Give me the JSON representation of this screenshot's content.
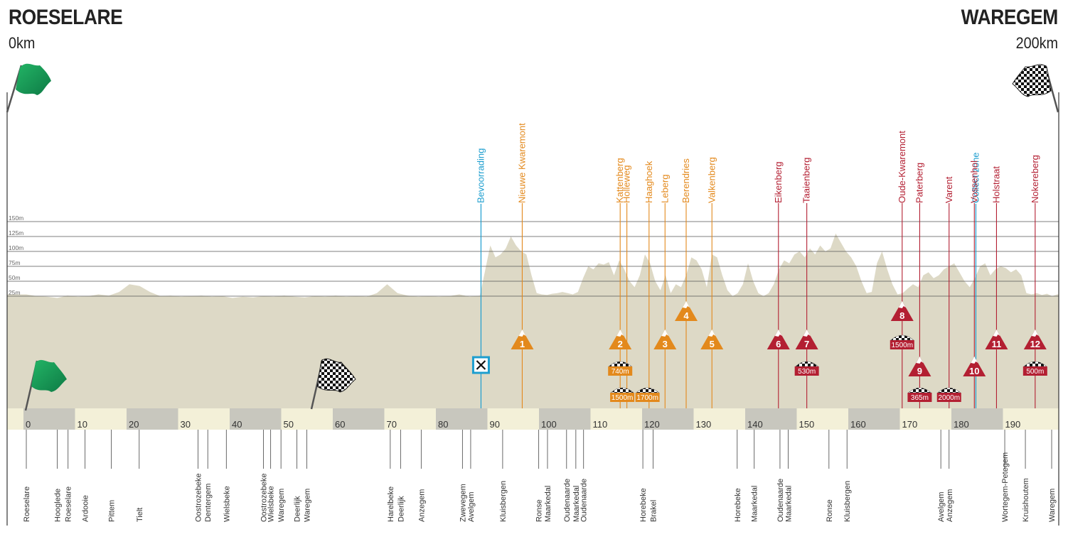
{
  "header": {
    "start_city": "ROESELARE",
    "start_distance": "0km",
    "finish_city": "WAREGEM",
    "finish_distance": "200km"
  },
  "colors": {
    "terrain": "#ddd9c6",
    "band_dark": "#c8c7be",
    "band_light": "#f3f0d8",
    "climb_orange": "#e3891c",
    "climb_red": "#b31f32",
    "feed": "#1d9ecf",
    "flag_green": "#2ba55b"
  },
  "chart_data": {
    "type": "area",
    "title": "",
    "xlabel": "",
    "ylabel": "",
    "xlim": [
      0,
      200
    ],
    "ylim": [
      0,
      150
    ],
    "grid": true,
    "y_ticks": [
      "150m",
      "125m",
      "100m",
      "75m",
      "50m",
      "25m"
    ],
    "x_ticks": [
      "0",
      "10",
      "20",
      "30",
      "40",
      "50",
      "60",
      "70",
      "80",
      "90",
      "100",
      "110",
      "120",
      "130",
      "140",
      "150",
      "160",
      "170",
      "180",
      "190"
    ],
    "elevation": {
      "km": [
        0,
        2,
        4,
        6,
        8,
        10,
        12,
        14,
        16,
        18,
        20,
        22,
        24,
        26,
        28,
        30,
        32,
        34,
        36,
        38,
        40,
        42,
        44,
        46,
        48,
        50,
        52,
        54,
        56,
        58,
        60,
        62,
        64,
        66,
        68,
        70,
        72,
        74,
        76,
        78,
        80,
        82,
        84,
        86,
        88,
        90,
        91,
        92,
        93,
        94,
        95,
        96,
        97,
        98,
        99,
        100,
        101,
        102,
        103,
        104,
        105,
        106,
        107,
        108,
        109,
        110,
        111,
        112,
        113,
        114,
        115,
        116,
        117,
        118,
        119,
        120,
        121,
        122,
        123,
        124,
        125,
        126,
        127,
        128,
        129,
        130,
        131,
        132,
        133,
        134,
        135,
        136,
        137,
        138,
        139,
        140,
        141,
        142,
        143,
        144,
        145,
        146,
        147,
        148,
        149,
        150,
        151,
        152,
        153,
        154,
        155,
        156,
        157,
        158,
        159,
        160,
        161,
        162,
        163,
        164,
        165,
        166,
        167,
        168,
        169,
        170,
        171,
        172,
        173,
        174,
        175,
        176,
        177,
        178,
        179,
        180,
        181,
        182,
        183,
        184,
        185,
        186,
        187,
        188,
        189,
        190,
        191,
        192,
        193,
        194,
        195,
        196,
        197,
        198,
        199,
        200
      ],
      "m": [
        28,
        25,
        24,
        22,
        26,
        24,
        25,
        28,
        26,
        32,
        45,
        42,
        32,
        25,
        26,
        24,
        25,
        26,
        24,
        25,
        22,
        24,
        23,
        25,
        24,
        26,
        24,
        23,
        25,
        24,
        26,
        24,
        25,
        24,
        30,
        45,
        30,
        26,
        24,
        25,
        24,
        25,
        28,
        24,
        26,
        110,
        90,
        95,
        105,
        125,
        110,
        100,
        95,
        60,
        30,
        28,
        27,
        29,
        30,
        32,
        30,
        28,
        32,
        55,
        75,
        70,
        80,
        78,
        82,
        60,
        85,
        70,
        50,
        40,
        60,
        95,
        80,
        50,
        35,
        60,
        30,
        45,
        40,
        60,
        90,
        85,
        70,
        40,
        95,
        90,
        60,
        35,
        25,
        30,
        45,
        80,
        50,
        30,
        25,
        30,
        45,
        70,
        85,
        80,
        95,
        100,
        90,
        105,
        95,
        110,
        100,
        105,
        130,
        115,
        100,
        90,
        75,
        50,
        30,
        32,
        80,
        100,
        70,
        45,
        28,
        30,
        38,
        45,
        40,
        60,
        65,
        55,
        60,
        70,
        75,
        80,
        65,
        50,
        40,
        55,
        75,
        80,
        60,
        70,
        75,
        72,
        65,
        70,
        60,
        30,
        28,
        30,
        27,
        29,
        25,
        28
      ]
    },
    "feed_zones": [
      {
        "km": 88.2,
        "label": "Bevoorrading"
      },
      {
        "km": 184.2,
        "label": "Collect zone"
      }
    ],
    "climbs": [
      {
        "num": "1",
        "name": "Nieuwe Kwaremont",
        "km": 96.2,
        "color": "orange",
        "row": 1
      },
      {
        "num": "2",
        "name": "Kattenberg",
        "km": 115.2,
        "color": "orange",
        "row": 1
      },
      {
        "num": "",
        "name": "Holleweg",
        "km": 116.5,
        "color": "orange",
        "row": 0
      },
      {
        "num": "",
        "name": "Haaghoek",
        "km": 120.8,
        "color": "orange",
        "row": 0
      },
      {
        "num": "3",
        "name": "Leberg",
        "km": 123.9,
        "color": "orange",
        "row": 1
      },
      {
        "num": "4",
        "name": "Berendries",
        "km": 128.0,
        "color": "orange",
        "row": 0
      },
      {
        "num": "5",
        "name": "Valkenberg",
        "km": 133.0,
        "color": "orange",
        "row": 1
      },
      {
        "num": "6",
        "name": "Eikenberg",
        "km": 145.9,
        "color": "red",
        "row": 1
      },
      {
        "num": "7",
        "name": "Taaienberg",
        "km": 151.4,
        "color": "red",
        "row": 1
      },
      {
        "num": "8",
        "name": "Oude-Kwaremont",
        "km": 169.9,
        "color": "red",
        "row": 0
      },
      {
        "num": "9",
        "name": "Paterberg",
        "km": 173.3,
        "color": "red",
        "row": 2
      },
      {
        "num": "",
        "name": "Varent",
        "km": 179.0,
        "color": "red",
        "row": 0
      },
      {
        "num": "10",
        "name": "Vossenhol",
        "km": 183.9,
        "color": "red",
        "row": 2
      },
      {
        "num": "11",
        "name": "Holstraat",
        "km": 188.2,
        "color": "red",
        "row": 1
      },
      {
        "num": "12",
        "name": "Nokereberg",
        "km": 195.7,
        "color": "red",
        "row": 1
      }
    ],
    "cobbles": [
      {
        "km": 115.2,
        "label": "740m",
        "color": "orange",
        "row": 2
      },
      {
        "km": 115.6,
        "label": "1500m",
        "color": "orange",
        "row": 3
      },
      {
        "km": 120.5,
        "label": "1700m",
        "color": "orange",
        "row": 3
      },
      {
        "km": 151.4,
        "label": "530m",
        "color": "red",
        "row": 2
      },
      {
        "km": 169.9,
        "label": "1500m",
        "color": "red",
        "row": 1
      },
      {
        "km": 173.3,
        "label": "365m",
        "color": "red",
        "row": 3
      },
      {
        "km": 179.0,
        "label": "2000m",
        "color": "red",
        "row": 3
      },
      {
        "km": 195.7,
        "label": "500m",
        "color": "red",
        "row": 2
      }
    ],
    "places": [
      {
        "name": "Roeselare",
        "km": 0
      },
      {
        "name": "Hooglede",
        "km": 6.0
      },
      {
        "name": "Roeselare",
        "km": 8.1
      },
      {
        "name": "Ardooie",
        "km": 11.4
      },
      {
        "name": "Pittem",
        "km": 16.5
      },
      {
        "name": "Tielt",
        "km": 21.9
      },
      {
        "name": "Oostrozebeke",
        "km": 33.3
      },
      {
        "name": "Dentergem",
        "km": 35.2
      },
      {
        "name": "Wielsbeke",
        "km": 38.8
      },
      {
        "name": "Oostrozebeke",
        "km": 46.0
      },
      {
        "name": "Wielsbeke",
        "km": 47.4
      },
      {
        "name": "Waregem",
        "km": 49.4
      },
      {
        "name": "Deerlijk",
        "km": 52.5
      },
      {
        "name": "Waregem",
        "km": 54.4
      },
      {
        "name": "Harelbeke",
        "km": 70.6
      },
      {
        "name": "Deerlijk",
        "km": 72.6
      },
      {
        "name": "Anzegem",
        "km": 76.6
      },
      {
        "name": "Zwevegem",
        "km": 84.6
      },
      {
        "name": "Avelgem",
        "km": 86.2
      },
      {
        "name": "Kluisbergen",
        "km": 92.4
      },
      {
        "name": "Ronse",
        "km": 99.4
      },
      {
        "name": "Maarkedal",
        "km": 101.1
      },
      {
        "name": "Oudenaarde",
        "km": 104.8
      },
      {
        "name": "Maarkedal",
        "km": 106.6
      },
      {
        "name": "Oudenaarde",
        "km": 108.1
      },
      {
        "name": "Horebeke",
        "km": 119.6
      },
      {
        "name": "Brakel",
        "km": 121.6
      },
      {
        "name": "Horebeke",
        "km": 137.9
      },
      {
        "name": "Maarkedal",
        "km": 141.2
      },
      {
        "name": "Oudenaarde",
        "km": 146.2
      },
      {
        "name": "Maarkedal",
        "km": 147.8
      },
      {
        "name": "Ronse",
        "km": 155.7
      },
      {
        "name": "Kluisbergen",
        "km": 159.2
      },
      {
        "name": "Avelgem",
        "km": 177.4
      },
      {
        "name": "Anzegem",
        "km": 179.0
      },
      {
        "name": "Wortegem-Petegem",
        "km": 189.8
      },
      {
        "name": "Kruishoutem",
        "km": 193.8
      },
      {
        "name": "Waregem",
        "km": 198.9
      }
    ]
  }
}
